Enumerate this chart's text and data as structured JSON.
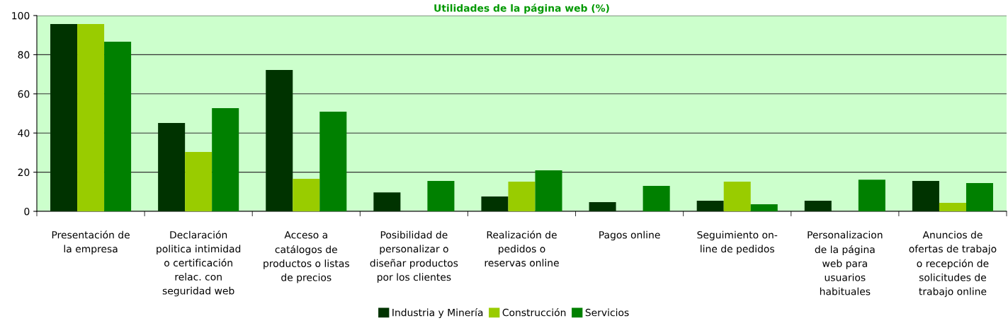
{
  "chart_data": {
    "type": "bar",
    "title": "Utilidades de la página web (%)",
    "categories": [
      "Presentación de\nla empresa",
      "Declaración\npolitica intimidad\no certificación\nrelac. con\nseguridad web",
      "Acceso a\ncatálogos de\nproductos o listas\nde precios",
      "Posibilidad de\npersonalizar o\ndiseñar productos\npor los clientes",
      "Realización de\npedidos o\nreservas online",
      "Pagos online",
      "Seguimiento on-\nline de pedidos",
      "Personalizacion\nde la página\nweb para\nusuarios\nhabituales",
      "Anuncios de\nofertas de trabajo\no recepción de\nsolicitudes de\ntrabajo online"
    ],
    "series": [
      {
        "name": "Industria y Minería",
        "color": "#003300",
        "values": [
          95.7,
          45.1,
          72.2,
          9.7,
          7.6,
          4.7,
          5.4,
          5.4,
          15.5
        ]
      },
      {
        "name": "Construcción",
        "color": "#99cc00",
        "values": [
          95.7,
          30.3,
          16.6,
          0,
          15.2,
          0,
          15.2,
          0,
          4.3
        ]
      },
      {
        "name": "Servicios",
        "color": "#008000",
        "values": [
          86.6,
          52.7,
          50.9,
          15.5,
          20.9,
          13,
          3.6,
          16.2,
          14.4
        ]
      }
    ],
    "ylim": [
      0,
      100
    ],
    "yticks": [
      0,
      20,
      40,
      60,
      80,
      100
    ],
    "grid": "y",
    "legend": "bottom"
  }
}
